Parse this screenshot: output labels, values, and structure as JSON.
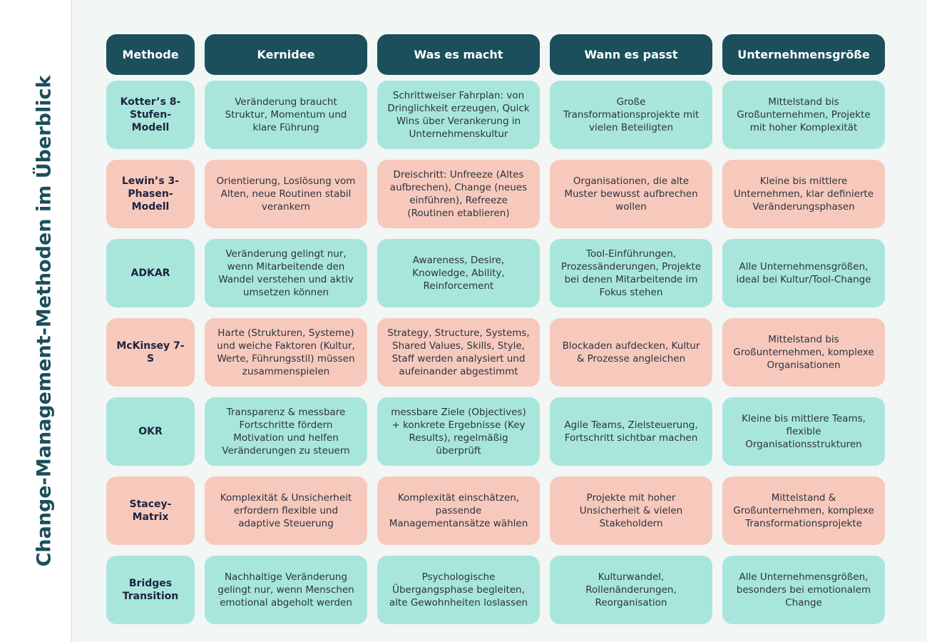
{
  "title": "Change-Management-Methoden im Überblick",
  "table": {
    "header": [
      "Methode",
      "Kernidee",
      "Was es macht",
      "Wann es passt",
      "Unternehmensgröße"
    ],
    "rows": [
      [
        "Kotter’s 8-Stufen-Modell",
        "Veränderung braucht Struktur, Momentum und klare Führung",
        "Schrittweiser Fahrplan: von Dringlichkeit erzeugen, Quick Wins über Verankerung in Unternehmenskultur",
        "Große Transformationsprojekte mit vielen Beteiligten",
        "Mittelstand bis Großunternehmen, Projekte mit hoher Komplexität"
      ],
      [
        "Lewin’s 3-Phasen-Modell",
        "Orientierung, Loslösung vom Alten, neue Routinen stabil verankern",
        "Dreischritt: Unfreeze (Altes aufbrechen), Change (neues einführen), Refreeze (Routinen etablieren)",
        "Organisationen, die alte Muster bewusst aufbrechen wollen",
        "Kleine bis mittlere Unternehmen, klar definierte Veränderungsphasen"
      ],
      [
        "ADKAR",
        "Veränderung gelingt nur, wenn Mitarbeitende den Wandel verstehen und aktiv umsetzen können",
        "Awareness, Desire, Knowledge, Ability, Reinforcement",
        "Tool-Einführungen, Prozessänderungen, Projekte bei denen Mitarbeitende im Fokus stehen",
        "Alle Unternehmensgrößen, ideal bei Kultur/Tool-Change"
      ],
      [
        "McKinsey 7-S",
        "Harte (Strukturen, Systeme) und weiche Faktoren (Kultur, Werte, Führungsstil) müssen zusammenspielen",
        "Strategy, Structure, Systems, Shared Values, Skills, Style, Staff werden analysiert und aufeinander abgestimmt",
        "Blockaden aufdecken, Kultur & Prozesse angleichen",
        "Mittelstand bis Großunternehmen, komplexe Organisationen"
      ],
      [
        "OKR",
        "Transparenz & messbare Fortschritte fördern Motivation und helfen Veränderungen zu steuern",
        "messbare Ziele (Objectives) + konkrete Ergebnisse (Key Results), regelmäßig überprüft",
        "Agile Teams, Zielsteuerung, Fortschritt sichtbar machen",
        "Kleine bis mittlere Teams, flexible Organisationsstrukturen"
      ],
      [
        "Stacey-Matrix",
        "Komplexität & Unsicherheit erfordern flexible und adaptive Steuerung",
        "Komplexität einschätzen, passende Managementansätze wählen",
        "Projekte mit hoher Unsicherheit & vielen Stakeholdern",
        "Mittelstand & Großunternehmen, komplexe Transformationsprojekte"
      ],
      [
        "Bridges Transition",
        "Nachhaltige Veränderung gelingt nur, wenn Menschen emotional abgeholt werden",
        "Psychologische Übergangsphase begleiten, alte Gewohnheiten loslassen",
        "Kulturwandel, Rollenänderungen, Reorganisation",
        "Alle Unternehmensgrößen, besonders bei emotionalem Change"
      ]
    ]
  }
}
